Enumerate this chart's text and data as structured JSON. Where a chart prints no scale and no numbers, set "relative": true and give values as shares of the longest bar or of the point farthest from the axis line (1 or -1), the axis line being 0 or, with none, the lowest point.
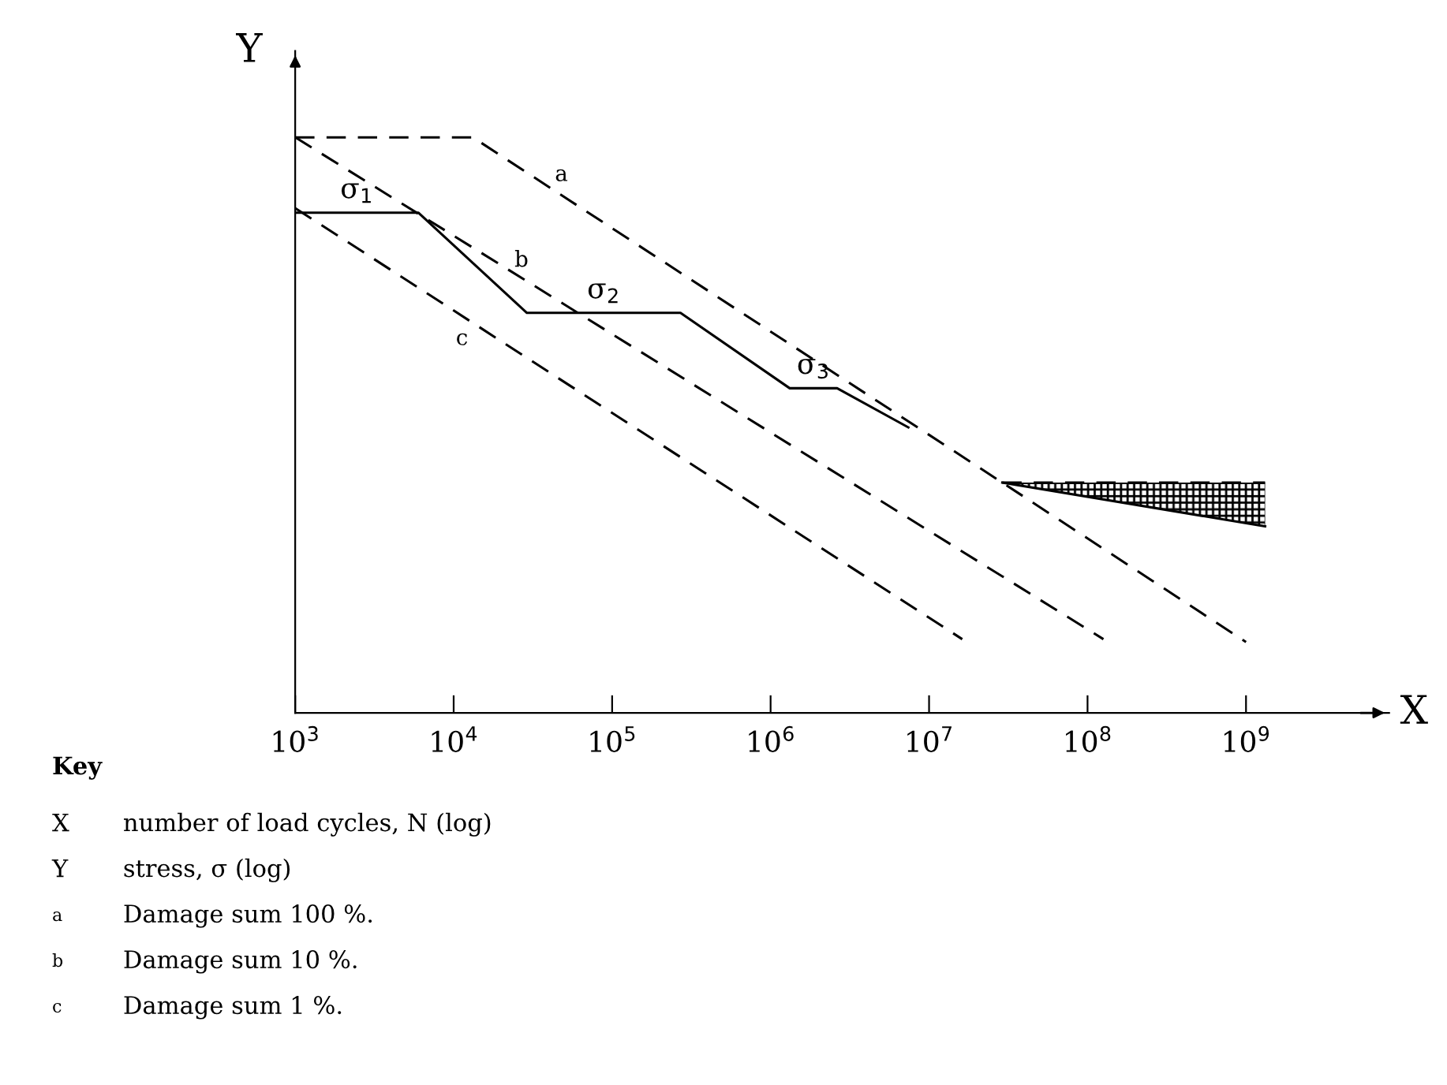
{
  "chart_data": {
    "type": "line",
    "relative": true,
    "log": "x",
    "xlabel": "X",
    "ylabel": "Y",
    "xlim": [
      1000,
      8000000000.0
    ],
    "xticks": [
      {
        "value": 1000,
        "label": "10$^{3}$"
      },
      {
        "value": 10000,
        "label": "10$^{4}$"
      },
      {
        "value": 100000,
        "label": "10$^{5}$"
      },
      {
        "value": 1000000,
        "label": "10$^{6}$"
      },
      {
        "value": 10000000,
        "label": "10$^{7}$"
      },
      {
        "value": 100000000,
        "label": "10$^{8}$"
      },
      {
        "value": 1000000000,
        "label": "10$^{9}$"
      }
    ],
    "grid": false,
    "legend": false,
    "line_style": "dashed",
    "marker": "none",
    "series": [
      {
        "name": "a",
        "color": "#000000",
        "x": [
          1000,
          13200,
          29000000,
          1000000000
        ],
        "values": [
          1.0,
          1.0,
          0.4,
          0.123
        ]
      },
      {
        "name": "b",
        "color": "#000000",
        "x": [
          1000,
          126000000
        ],
        "values": [
          1.0,
          0.128
        ]
      },
      {
        "name": "c",
        "color": "#000000",
        "x": [
          1000,
          16200000
        ],
        "values": [
          0.877,
          0.128
        ]
      },
      {
        "color": "#000000",
        "line_style": "solid",
        "x": [
          1000,
          6000,
          29000,
          270000,
          1320000,
          2630000,
          7400000
        ],
        "values": [
          0.869,
          0.869,
          0.695,
          0.695,
          0.564,
          0.564,
          0.496
        ]
      },
      {
        "color": "#000000",
        "x": [
          29000000,
          1320000000
        ],
        "values": [
          0.4,
          0.4
        ]
      },
      {
        "color": "#000000",
        "line_style": "solid",
        "x": [
          29000000,
          1320000000
        ],
        "values": [
          0.4,
          0.324
        ]
      }
    ],
    "annotations": [
      "σ$_{1}$",
      "σ$_{2}$",
      "σ$_{3}$",
      "Key",
      "X number of load cycles, N (log)",
      "Y stress, σ (log)",
      "a Damage sum 100 %.",
      "b Damage sum 10 %.",
      "c Damage sum 1 %."
    ]
  }
}
